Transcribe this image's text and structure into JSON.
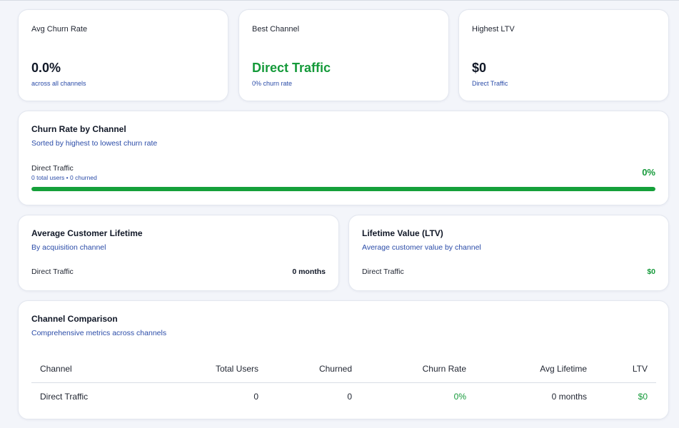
{
  "stats": [
    {
      "label": "Avg Churn Rate",
      "value": "0.0%",
      "sub": "across all channels",
      "accent": false
    },
    {
      "label": "Best Channel",
      "value": "Direct Traffic",
      "sub": "0% churn rate",
      "accent": true
    },
    {
      "label": "Highest LTV",
      "value": "$0",
      "sub": "Direct Traffic",
      "accent": false
    }
  ],
  "churn_by_channel": {
    "title": "Churn Rate by Channel",
    "subtitle": "Sorted by highest to lowest churn rate",
    "rows": [
      {
        "channel": "Direct Traffic",
        "meta": "0 total users • 0 churned",
        "rate": "0%",
        "bar_fill_percent": 100
      }
    ]
  },
  "lifetime": {
    "title": "Average Customer Lifetime",
    "subtitle": "By acquisition channel",
    "rows": [
      {
        "channel": "Direct Traffic",
        "value": "0 months"
      }
    ]
  },
  "ltv": {
    "title": "Lifetime Value (LTV)",
    "subtitle": "Average customer value by channel",
    "rows": [
      {
        "channel": "Direct Traffic",
        "value": "$0"
      }
    ]
  },
  "comparison": {
    "title": "Channel Comparison",
    "subtitle": "Comprehensive metrics across channels",
    "headers": [
      "Channel",
      "Total Users",
      "Churned",
      "Churn Rate",
      "Avg Lifetime",
      "LTV"
    ],
    "rows": [
      {
        "channel": "Direct Traffic",
        "total_users": "0",
        "churned": "0",
        "churn_rate": "0%",
        "avg_lifetime": "0 months",
        "ltv": "$0"
      }
    ]
  },
  "colors": {
    "accent_green": "#159a3a",
    "link_blue": "#2b4ca8",
    "bar_green": "#15a03a"
  }
}
